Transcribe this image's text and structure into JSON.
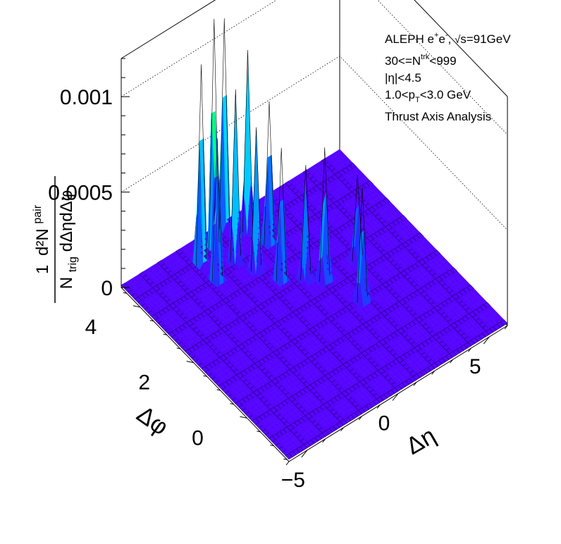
{
  "chart_data": {
    "type": "surface3d",
    "legend": {
      "experiment": "ALEPH e",
      "energy": "s=91GeV",
      "multiplicity": "30<=N",
      "multiplicity_sup": "trk",
      "multiplicity_max": "<999",
      "eta_cut": "|η|<4.5",
      "pt_cut_pre": "1.0<p",
      "pt_cut_sub": "T",
      "pt_cut_post": "<3.0 GeV",
      "analysis": "Thrust Axis Analysis"
    },
    "x_axis": {
      "title": "Δη",
      "range": [
        -6,
        6
      ],
      "ticks": [
        "−5",
        "0",
        "5"
      ],
      "tick_values": [
        -5,
        0,
        5
      ]
    },
    "y_axis": {
      "title": "Δφ",
      "range": [
        -1.57,
        4.71
      ],
      "ticks": [
        "0",
        "2",
        "4"
      ],
      "tick_values": [
        0,
        2,
        4
      ]
    },
    "z_axis": {
      "title_num": "1",
      "title_num2": "d²N",
      "title_sup": "pair",
      "title_den": "N",
      "title_den_sub": "trig",
      "title_den_rest": "dΔηdΔφ",
      "range": [
        0,
        0.0012
      ],
      "ticks": [
        "0",
        "0.0005",
        "0.001"
      ],
      "tick_values": [
        0,
        0.0005,
        0.001
      ]
    },
    "peaks": [
      {
        "deta": -2.5,
        "dphi": 4.1,
        "value": 0.00105
      },
      {
        "deta": -2.5,
        "dphi": 3.5,
        "value": 0.00075
      },
      {
        "deta": -1.5,
        "dphi": 4.3,
        "value": 0.0012
      },
      {
        "deta": -1.2,
        "dphi": 3.7,
        "value": 0.0009
      },
      {
        "deta": -0.8,
        "dphi": 3.2,
        "value": 0.00075
      },
      {
        "deta": -0.5,
        "dphi": 4.6,
        "value": 0.0011
      },
      {
        "deta": -0.3,
        "dphi": 2.6,
        "value": 0.0007
      },
      {
        "deta": 0.2,
        "dphi": 4.2,
        "value": 0.00095
      },
      {
        "deta": 0.5,
        "dphi": 3.6,
        "value": 0.00075
      },
      {
        "deta": 0.6,
        "dphi": 2.3,
        "value": 0.0006
      },
      {
        "deta": 1.2,
        "dphi": 2.0,
        "value": 0.0007
      },
      {
        "deta": 1.8,
        "dphi": 1.0,
        "value": 0.0006
      },
      {
        "deta": 3.0,
        "dphi": 2.0,
        "value": 0.00045
      }
    ]
  }
}
